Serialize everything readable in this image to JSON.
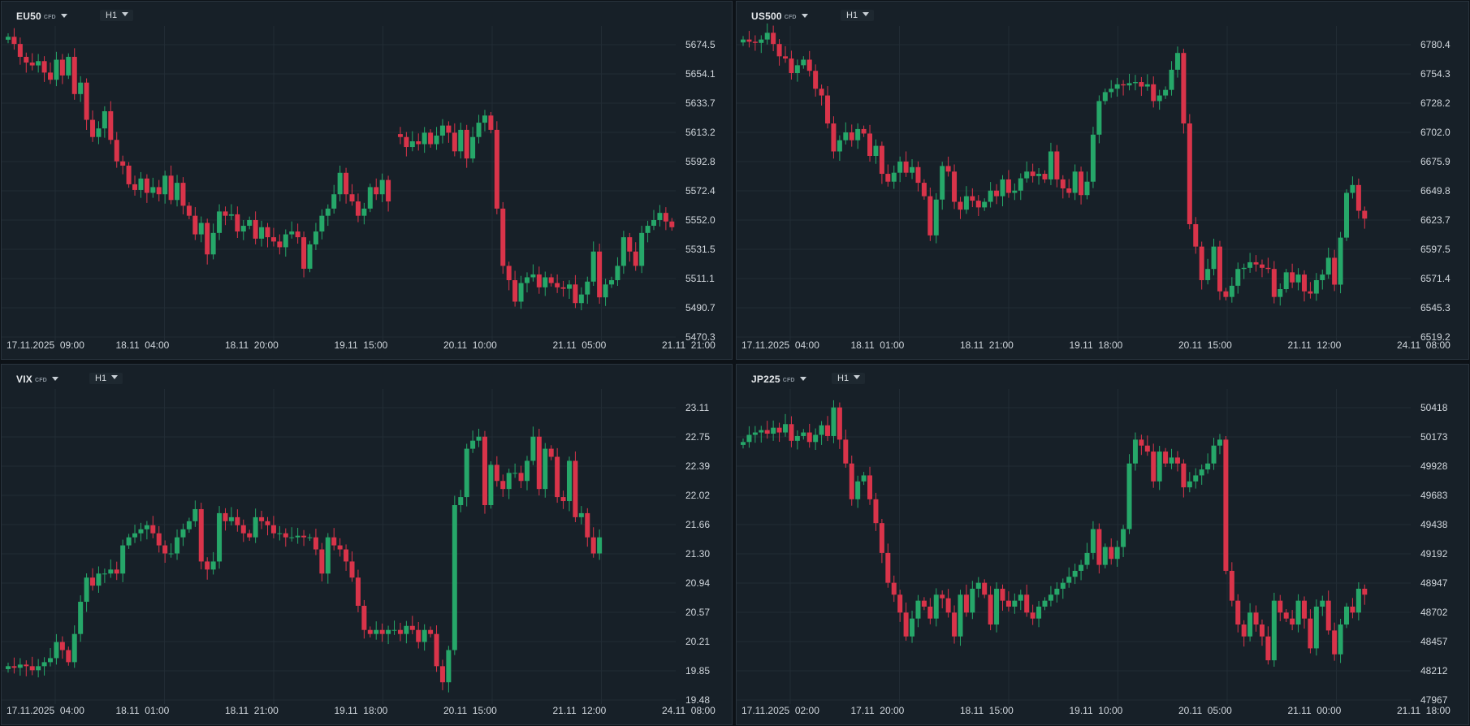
{
  "panels": [
    {
      "id": "eu50",
      "symbol": "EU50",
      "badge": "CFD",
      "timeframe": "H1",
      "chart_data": {
        "type": "candlestick",
        "instrument": "EU50",
        "y_ticks": [
          "5674.5",
          "5654.1",
          "5633.7",
          "5613.2",
          "5592.8",
          "5572.4",
          "5552.0",
          "5531.5",
          "5511.1",
          "5490.7",
          "5470.3"
        ],
        "ylim": [
          5470.3,
          5674.5
        ],
        "x_ticks": [
          "17.11.2025  09:00",
          "18.11  04:00",
          "18.11  20:00",
          "19.11  15:00",
          "20.11  10:00",
          "21.11  05:00",
          "21.11  21:00"
        ],
        "closes": [
          5680,
          5675,
          5666,
          5662,
          5660,
          5663,
          5655,
          5650,
          5664,
          5653,
          5666,
          5640,
          5648,
          5622,
          5610,
          5616,
          5628,
          5608,
          5593,
          5590,
          5577,
          5573,
          5581,
          5571,
          5575,
          5570,
          5583,
          5566,
          5578,
          5562,
          5555,
          5542,
          5550,
          5528,
          5543,
          5558,
          5555,
          5556,
          5544,
          5548,
          5552,
          5539,
          5547,
          5540,
          5537,
          5533,
          5542,
          5544,
          5540,
          5518,
          5535,
          5544,
          5555,
          5560,
          5570,
          5585,
          5570,
          5565,
          5555,
          5560,
          5575,
          5570,
          5580,
          5565,
          null,
          5610,
          5603,
          5607,
          5605,
          5613,
          5605,
          5611,
          5618,
          5613,
          5600,
          5615,
          5595,
          5610,
          5620,
          5625,
          5615,
          5560,
          5520,
          5510,
          5495,
          5508,
          5512,
          5514,
          5505,
          5512,
          5508,
          5505,
          5504,
          5507,
          5494,
          5500,
          5509,
          5530,
          5498,
          5507,
          5510,
          5520,
          5540,
          5530,
          5520,
          5543,
          5548,
          5552,
          5557,
          5551,
          5547
        ]
      }
    },
    {
      "id": "us500",
      "symbol": "US500",
      "badge": "CFD",
      "timeframe": "H1",
      "chart_data": {
        "type": "candlestick",
        "instrument": "US500",
        "y_ticks": [
          "6780.4",
          "6754.3",
          "6728.2",
          "6702.0",
          "6675.9",
          "6649.8",
          "6623.7",
          "6597.5",
          "6571.4",
          "6545.3",
          "6519.2"
        ],
        "ylim": [
          6519.2,
          6780.4
        ],
        "x_ticks": [
          "17.11.2025  04:00",
          "18.11  01:00",
          "18.11  21:00",
          "19.11  18:00",
          "20.11  15:00",
          "21.11  12:00",
          "24.11  08:00"
        ],
        "closes": [
          6785,
          6783,
          6782,
          6785,
          6791,
          6781,
          6770,
          6768,
          6755,
          6762,
          6767,
          6757,
          6741,
          6735,
          6710,
          6685,
          6695,
          6702,
          6695,
          6705,
          6701,
          6681,
          6690,
          6665,
          6658,
          6666,
          6676,
          6666,
          6671,
          6657,
          6645,
          6610,
          6642,
          6672,
          6667,
          6640,
          6633,
          6645,
          6641,
          6635,
          6640,
          6650,
          6645,
          6660,
          6648,
          6650,
          6661,
          6667,
          6663,
          6665,
          6660,
          6685,
          6660,
          6652,
          6648,
          6667,
          6646,
          6658,
          6700,
          6730,
          6738,
          6741,
          6745,
          6744,
          6746,
          6747,
          6743,
          6745,
          6730,
          6735,
          6740,
          6758,
          6773,
          6710,
          6620,
          6600,
          6570,
          6580,
          6600,
          6560,
          6555,
          6565,
          6580,
          6581,
          6586,
          6584,
          6581,
          6580,
          6555,
          6562,
          6577,
          6568,
          6575,
          6560,
          6558,
          6570,
          6575,
          6590,
          6566,
          6608,
          6648,
          6655,
          6632,
          6625
        ]
      }
    },
    {
      "id": "vix",
      "symbol": "VIX",
      "badge": "CFD",
      "timeframe": "H1",
      "chart_data": {
        "type": "candlestick",
        "instrument": "VIX",
        "y_ticks": [
          "23.11",
          "22.75",
          "22.39",
          "22.02",
          "21.66",
          "21.30",
          "20.94",
          "20.57",
          "20.21",
          "19.85",
          "19.48"
        ],
        "ylim": [
          19.48,
          23.11
        ],
        "x_ticks": [
          "17.11.2025  04:00",
          "18.11  01:00",
          "18.11  21:00",
          "19.11  18:00",
          "20.11  15:00",
          "21.11  12:00",
          "24.11  08:00"
        ],
        "closes": [
          19.9,
          19.88,
          19.92,
          19.9,
          19.85,
          19.9,
          19.95,
          20.0,
          20.2,
          20.1,
          19.95,
          20.3,
          20.7,
          21.0,
          20.9,
          21.05,
          21.05,
          21.1,
          21.05,
          21.4,
          21.5,
          21.55,
          21.6,
          21.65,
          21.55,
          21.4,
          21.3,
          21.3,
          21.5,
          21.6,
          21.7,
          21.85,
          21.2,
          21.1,
          21.2,
          21.8,
          21.7,
          21.75,
          21.65,
          21.55,
          21.5,
          21.75,
          21.7,
          21.65,
          21.55,
          21.55,
          21.5,
          21.5,
          21.52,
          21.5,
          21.5,
          21.35,
          21.05,
          21.5,
          21.4,
          21.35,
          21.2,
          21.0,
          20.65,
          20.35,
          20.3,
          20.35,
          20.3,
          20.35,
          20.35,
          20.3,
          20.4,
          20.35,
          20.2,
          20.35,
          20.3,
          19.9,
          19.7,
          20.1,
          21.9,
          22.0,
          22.6,
          22.7,
          22.75,
          21.9,
          22.4,
          22.2,
          22.1,
          22.3,
          22.3,
          22.2,
          22.45,
          22.75,
          22.1,
          22.6,
          22.5,
          22.0,
          21.95,
          22.45,
          21.75,
          21.8,
          21.5,
          21.3,
          21.5
        ]
      }
    },
    {
      "id": "jp225",
      "symbol": "JP225",
      "badge": "CFD",
      "timeframe": "H1",
      "chart_data": {
        "type": "candlestick",
        "instrument": "JP225",
        "y_ticks": [
          "50418",
          "50173",
          "49928",
          "49683",
          "49438",
          "49192",
          "48947",
          "48702",
          "48457",
          "48212",
          "47967"
        ],
        "ylim": [
          47967,
          50418
        ],
        "x_ticks": [
          "17.11.2025  02:00",
          "17.11  20:00",
          "18.11  15:00",
          "19.11  10:00",
          "20.11  05:00",
          "21.11  00:00",
          "21.11  18:00"
        ],
        "closes": [
          50130,
          50190,
          50210,
          50230,
          50200,
          50250,
          50210,
          50280,
          50140,
          50180,
          50210,
          50130,
          50190,
          50270,
          50180,
          50420,
          50150,
          49950,
          49650,
          49800,
          49850,
          49650,
          49450,
          49200,
          48950,
          48850,
          48700,
          48500,
          48650,
          48800,
          48750,
          48650,
          48850,
          48820,
          48700,
          48500,
          48850,
          48700,
          48900,
          48950,
          48850,
          48600,
          48900,
          48800,
          48750,
          48800,
          48850,
          48700,
          48650,
          48750,
          48800,
          48850,
          48900,
          48950,
          49000,
          49050,
          49100,
          49200,
          49400,
          49100,
          49250,
          49150,
          49250,
          49400,
          49950,
          50150,
          50100,
          50050,
          49800,
          50050,
          49950,
          50000,
          49950,
          49750,
          49800,
          49850,
          49900,
          49950,
          50100,
          50150,
          49050,
          48800,
          48600,
          48500,
          48700,
          48600,
          48500,
          48300,
          48800,
          48700,
          48650,
          48600,
          48800,
          48650,
          48400,
          48750,
          48800,
          48550,
          48350,
          48600,
          48750,
          48700,
          48900,
          48850
        ]
      }
    }
  ]
}
